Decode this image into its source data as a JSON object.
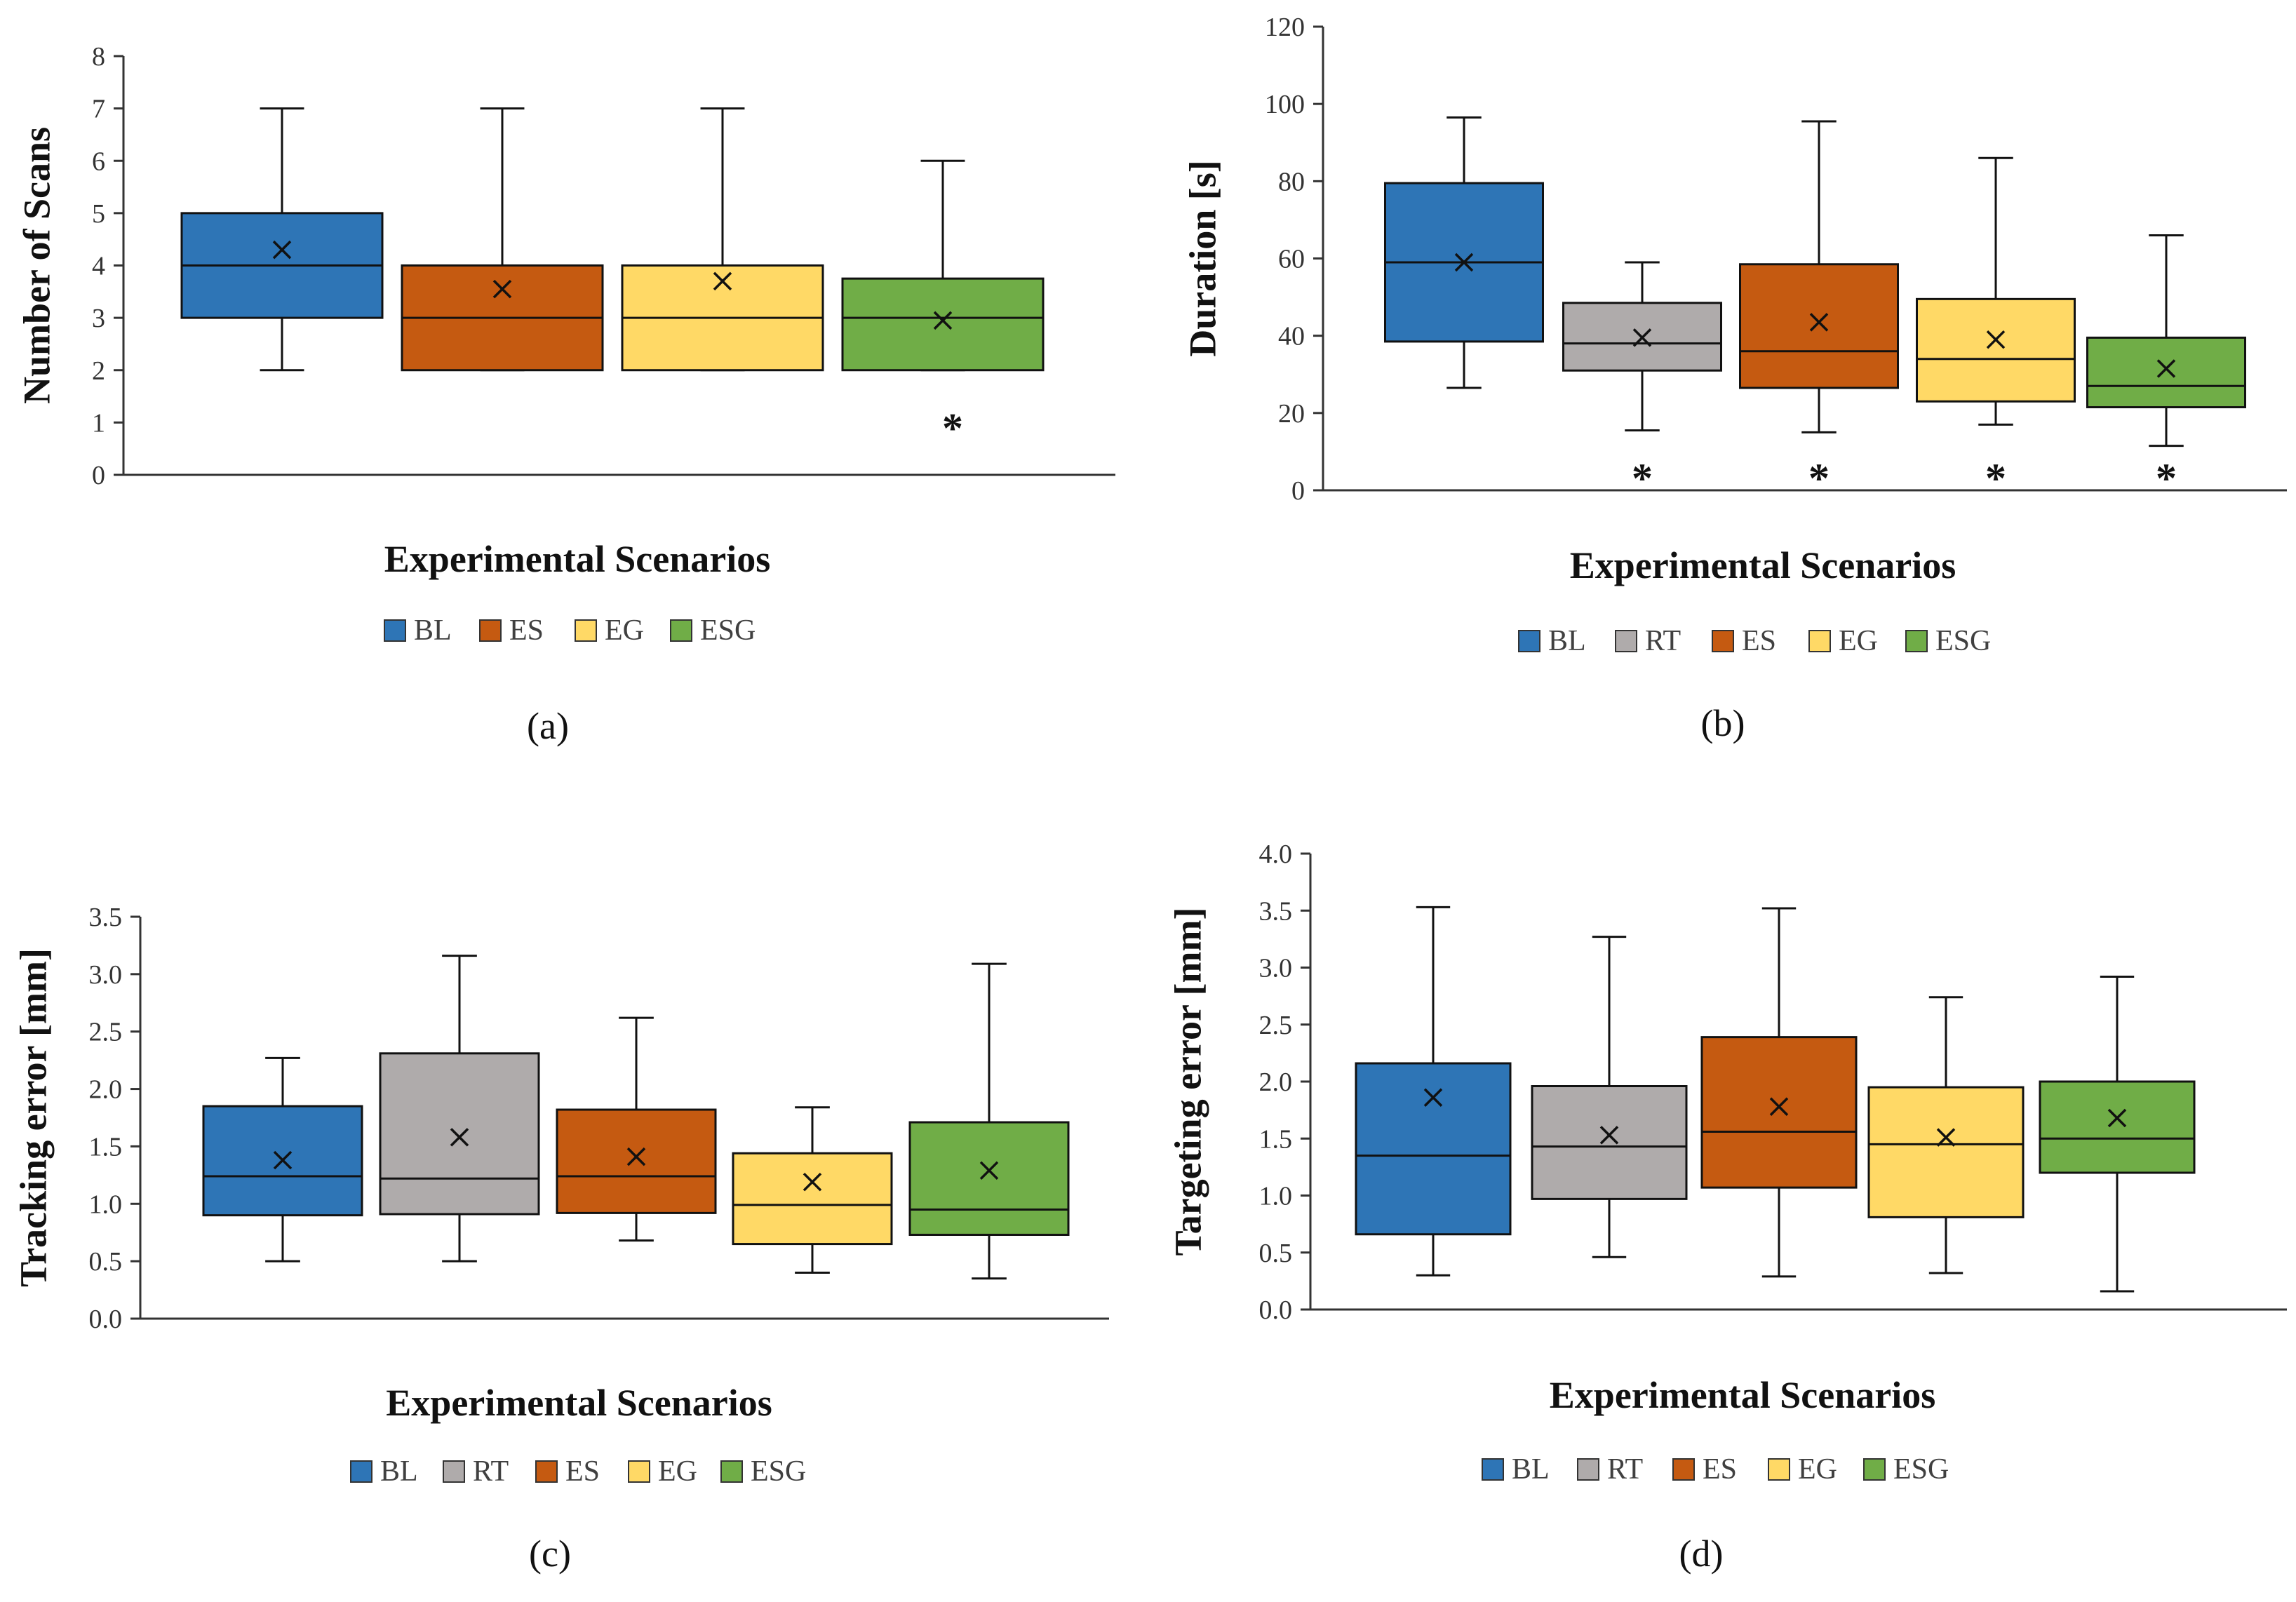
{
  "colors": {
    "BL": "#2E75B6",
    "RT": "#AFABAB",
    "ES": "#C55A11",
    "EG": "#FFD966",
    "ESG": "#70AD47"
  },
  "chart_data": [
    {
      "id": "a",
      "type": "box",
      "caption": "(a)",
      "ylabel": "Number of Scans",
      "xlabel": "Experimental Scenarios",
      "ylim": [
        0,
        8
      ],
      "yticks": [
        "0",
        "1",
        "2",
        "3",
        "4",
        "5",
        "6",
        "7",
        "8"
      ],
      "legend": [
        "BL",
        "ES",
        "EG",
        "ESG"
      ],
      "boxes": [
        {
          "name": "BL",
          "min": 2,
          "q1": 3,
          "median": 4,
          "q3": 5,
          "max": 7,
          "mean": 4.3,
          "outliers": []
        },
        {
          "name": "ES",
          "min": 2,
          "q1": 2,
          "median": 3,
          "q3": 4,
          "max": 7,
          "mean": 3.55,
          "outliers": []
        },
        {
          "name": "EG",
          "min": 2,
          "q1": 2,
          "median": 3,
          "q3": 4,
          "max": 7,
          "mean": 3.7,
          "outliers": []
        },
        {
          "name": "ESG",
          "min": 2,
          "q1": 2,
          "median": 3,
          "q3": 3.75,
          "max": 6,
          "mean": 2.95,
          "outliers": [
            1
          ]
        }
      ]
    },
    {
      "id": "b",
      "type": "box",
      "caption": "(b)",
      "ylabel": "Duration [s]",
      "xlabel": "Experimental Scenarios",
      "ylim": [
        0,
        120
      ],
      "yticks": [
        "0",
        "20",
        "40",
        "60",
        "80",
        "100",
        "120"
      ],
      "legend": [
        "BL",
        "RT",
        "ES",
        "EG",
        "ESG"
      ],
      "boxes": [
        {
          "name": "BL",
          "min": 26.5,
          "q1": 38.5,
          "median": 59,
          "q3": 79.5,
          "max": 96.5,
          "mean": 59,
          "outliers": []
        },
        {
          "name": "RT",
          "min": 15.5,
          "q1": 31,
          "median": 38,
          "q3": 48.5,
          "max": 59,
          "mean": 39.5,
          "outliers": [
            4.5
          ]
        },
        {
          "name": "ES",
          "min": 15,
          "q1": 26.5,
          "median": 36,
          "q3": 58.5,
          "max": 95.5,
          "mean": 43.5,
          "outliers": [
            4.5
          ]
        },
        {
          "name": "EG",
          "min": 17,
          "q1": 23,
          "median": 34,
          "q3": 49.5,
          "max": 86,
          "mean": 39,
          "outliers": [
            4.5
          ]
        },
        {
          "name": "ESG",
          "min": 11.5,
          "q1": 21.5,
          "median": 27,
          "q3": 39.5,
          "max": 66,
          "mean": 31.5,
          "outliers": [
            4.5
          ]
        }
      ]
    },
    {
      "id": "c",
      "type": "box",
      "caption": "(c)",
      "ylabel": "Tracking error [mm]",
      "xlabel": "Experimental Scenarios",
      "ylim": [
        0,
        3.5
      ],
      "yticks": [
        "0.0",
        "0.5",
        "1.0",
        "1.5",
        "2.0",
        "2.5",
        "3.0",
        "3.5"
      ],
      "legend": [
        "BL",
        "RT",
        "ES",
        "EG",
        "ESG"
      ],
      "boxes": [
        {
          "name": "BL",
          "min": 0.5,
          "q1": 0.9,
          "median": 1.24,
          "q3": 1.85,
          "max": 2.27,
          "mean": 1.38,
          "outliers": []
        },
        {
          "name": "RT",
          "min": 0.5,
          "q1": 0.91,
          "median": 1.22,
          "q3": 2.31,
          "max": 3.16,
          "mean": 1.58,
          "outliers": []
        },
        {
          "name": "ES",
          "min": 0.68,
          "q1": 0.92,
          "median": 1.24,
          "q3": 1.82,
          "max": 2.62,
          "mean": 1.41,
          "outliers": []
        },
        {
          "name": "EG",
          "min": 0.4,
          "q1": 0.65,
          "median": 0.99,
          "q3": 1.44,
          "max": 1.84,
          "mean": 1.19,
          "outliers": []
        },
        {
          "name": "ESG",
          "min": 0.35,
          "q1": 0.73,
          "median": 0.95,
          "q3": 1.71,
          "max": 3.09,
          "mean": 1.29,
          "outliers": []
        }
      ]
    },
    {
      "id": "d",
      "type": "box",
      "caption": "(d)",
      "ylabel": "Targeting error [mm]",
      "xlabel": "Experimental Scenarios",
      "ylim": [
        0,
        4
      ],
      "yticks": [
        "0.0",
        "0.5",
        "1.0",
        "1.5",
        "2.0",
        "2.5",
        "3.0",
        "3.5",
        "4.0"
      ],
      "legend": [
        "BL",
        "RT",
        "ES",
        "EG",
        "ESG"
      ],
      "boxes": [
        {
          "name": "BL",
          "min": 0.3,
          "q1": 0.66,
          "median": 1.35,
          "q3": 2.16,
          "max": 3.53,
          "mean": 1.86,
          "outliers": []
        },
        {
          "name": "RT",
          "min": 0.46,
          "q1": 0.97,
          "median": 1.43,
          "q3": 1.96,
          "max": 3.27,
          "mean": 1.53,
          "outliers": []
        },
        {
          "name": "ES",
          "min": 0.29,
          "q1": 1.07,
          "median": 1.56,
          "q3": 2.39,
          "max": 3.52,
          "mean": 1.78,
          "outliers": []
        },
        {
          "name": "EG",
          "min": 0.32,
          "q1": 0.81,
          "median": 1.45,
          "q3": 1.95,
          "max": 2.74,
          "mean": 1.51,
          "outliers": []
        },
        {
          "name": "ESG",
          "min": 0.16,
          "q1": 1.2,
          "median": 1.5,
          "q3": 2.0,
          "max": 2.92,
          "mean": 1.68,
          "outliers": []
        }
      ]
    }
  ]
}
